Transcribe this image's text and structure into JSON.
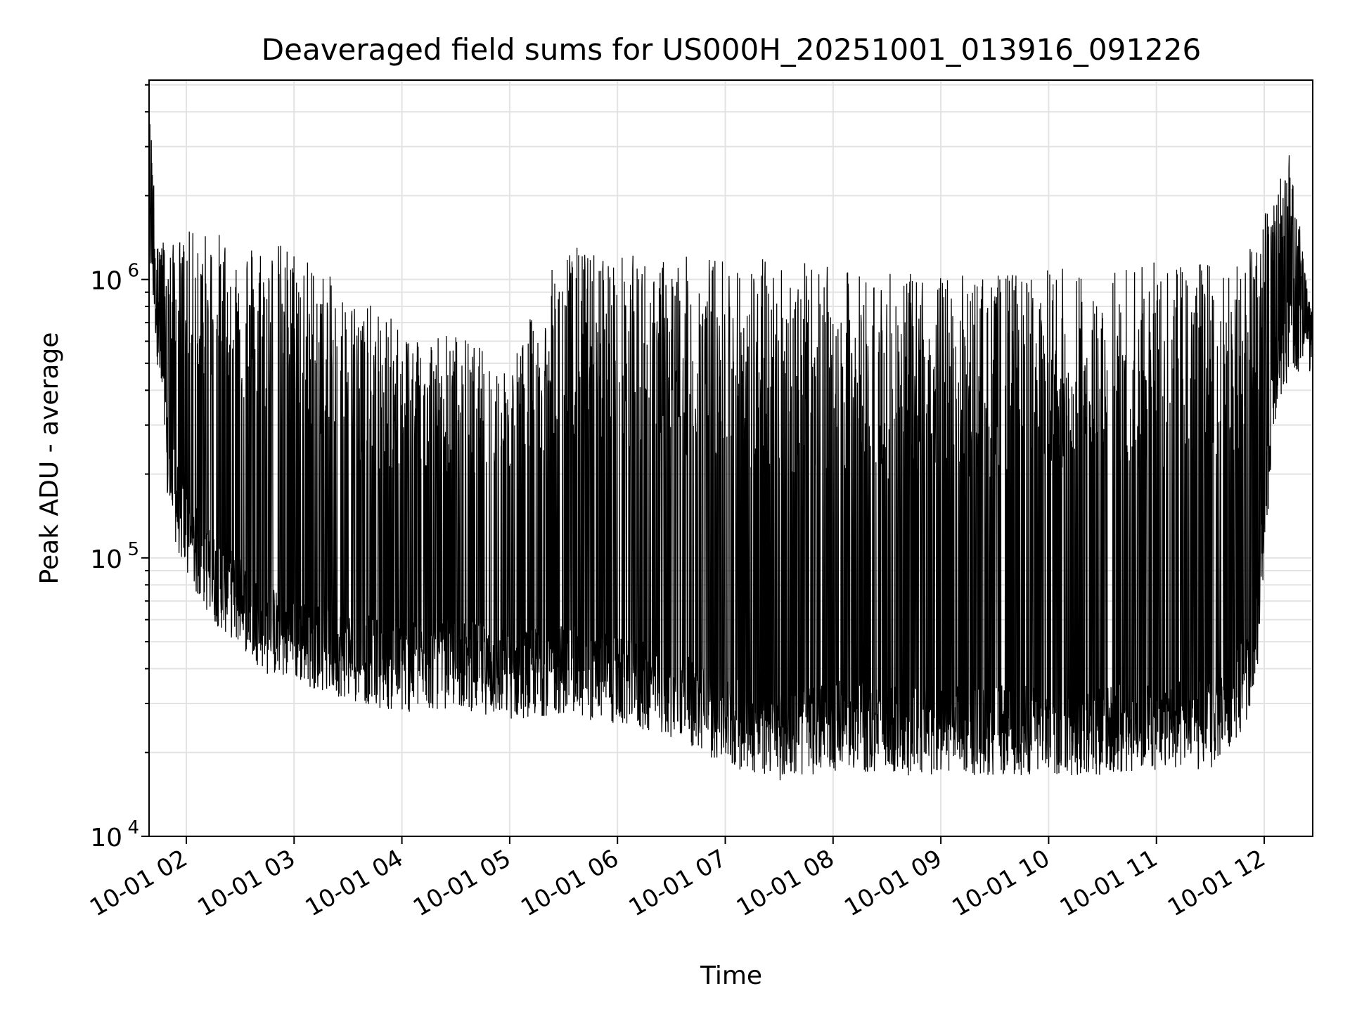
{
  "chart_data": {
    "type": "line",
    "title": "Deaveraged field sums for US000H_20251001_013916_091226",
    "xlabel": "Time",
    "ylabel": "Peak ADU - average",
    "y_scale": "log",
    "ylim": [
      10000,
      5200000
    ],
    "xlim": [
      "2025-10-01 01:39:16",
      "2025-10-01 12:27:00"
    ],
    "y_ticks": [
      {
        "value": 10000,
        "base": "10",
        "exp": "4"
      },
      {
        "value": 100000,
        "base": "10",
        "exp": "5"
      },
      {
        "value": 1000000,
        "base": "10",
        "exp": "6"
      }
    ],
    "x_ticks": [
      "10-01 02",
      "10-01 03",
      "10-01 04",
      "10-01 05",
      "10-01 06",
      "10-01 07",
      "10-01 08",
      "10-01 09",
      "10-01 10",
      "10-01 11",
      "10-01 12"
    ],
    "x_tick_times": [
      "2025-10-01 02:00",
      "2025-10-01 03:00",
      "2025-10-01 04:00",
      "2025-10-01 05:00",
      "2025-10-01 06:00",
      "2025-10-01 07:00",
      "2025-10-01 08:00",
      "2025-10-01 09:00",
      "2025-10-01 10:00",
      "2025-10-01 11:00",
      "2025-10-01 12:00"
    ],
    "grid": true,
    "legend": "none",
    "line_color": "#000000",
    "series": [
      {
        "x": [
          "2025-10-01 01:40",
          "2025-10-01 01:45",
          "2025-10-01 01:50",
          "2025-10-01 02:00",
          "2025-10-01 02:15",
          "2025-10-01 02:30",
          "2025-10-01 02:45",
          "2025-10-01 03:00",
          "2025-10-01 03:30",
          "2025-10-01 04:00",
          "2025-10-01 04:30",
          "2025-10-01 05:00",
          "2025-10-01 05:30",
          "2025-10-01 06:00",
          "2025-10-01 06:30",
          "2025-10-01 07:00",
          "2025-10-01 07:30",
          "2025-10-01 08:00",
          "2025-10-01 08:30",
          "2025-10-01 09:00",
          "2025-10-01 09:30",
          "2025-10-01 10:00",
          "2025-10-01 10:30",
          "2025-10-01 11:00",
          "2025-10-01 11:30",
          "2025-10-01 11:55",
          "2025-10-01 12:05",
          "2025-10-01 12:15",
          "2025-10-01 12:25"
        ],
        "y_baseline": [
          1500000,
          600000,
          200000,
          120000,
          85000,
          70000,
          55000,
          52000,
          45000,
          40000,
          42000,
          38000,
          40000,
          36000,
          33000,
          26000,
          23000,
          25000,
          24000,
          24000,
          24000,
          24000,
          24000,
          25000,
          25000,
          40000,
          400000,
          700000,
          650000
        ],
        "y_peak": [
          3800000,
          1500000,
          1300000,
          1500000,
          1500000,
          1450000,
          1400000,
          1350000,
          900000,
          700000,
          650000,
          500000,
          1350000,
          1250000,
          1200000,
          1250000,
          1200000,
          1100000,
          1050000,
          1050000,
          1050000,
          1100000,
          1150000,
          1150000,
          1200000,
          1300000,
          2200000,
          2900000,
          800000
        ]
      }
    ]
  }
}
